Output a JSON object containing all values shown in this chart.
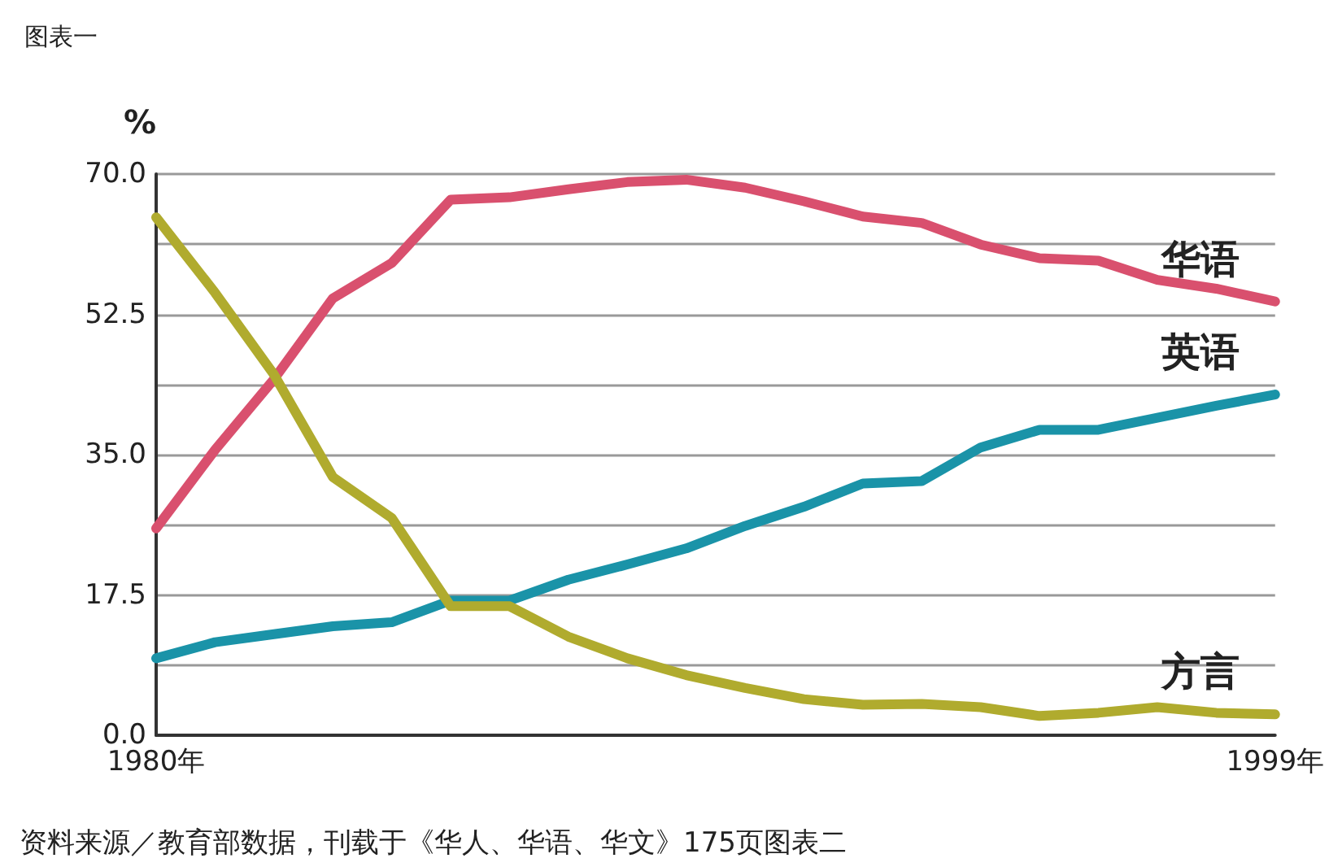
{
  "chart_data": {
    "type": "line",
    "title": "图表一",
    "ylabel": "%",
    "categories": [
      "1980年",
      null,
      null,
      null,
      null,
      null,
      null,
      null,
      null,
      null,
      null,
      null,
      null,
      null,
      null,
      null,
      null,
      null,
      null,
      "1999年"
    ],
    "series": [
      {
        "name": "华语",
        "color": "#d9506e",
        "values": [
          25.8,
          35.6,
          44.4,
          54.5,
          58.9,
          66.8,
          67.1,
          68.1,
          69.0,
          69.3,
          68.3,
          66.6,
          64.7,
          63.9,
          61.2,
          59.5,
          59.2,
          56.8,
          55.7,
          54.1
        ]
      },
      {
        "name": "英语",
        "color": "#1a93a8",
        "values": [
          9.6,
          11.6,
          12.6,
          13.6,
          14.1,
          16.8,
          16.8,
          19.4,
          21.3,
          23.3,
          26.1,
          28.5,
          31.4,
          31.7,
          35.9,
          38.1,
          38.1,
          39.6,
          41.1,
          42.5
        ]
      },
      {
        "name": "方言",
        "color": "#b0ab2e",
        "values": [
          64.6,
          55.2,
          45.0,
          32.2,
          27.1,
          16.1,
          16.1,
          12.3,
          9.6,
          7.5,
          5.9,
          4.5,
          3.8,
          3.9,
          3.5,
          2.4,
          2.8,
          3.5,
          2.8,
          2.6
        ]
      }
    ],
    "ylim": [
      0,
      70
    ],
    "yticks": [
      {
        "value": 0,
        "label": "0.0"
      },
      {
        "value": 8.75,
        "label": null
      },
      {
        "value": 17.5,
        "label": "17.5"
      },
      {
        "value": 26.25,
        "label": null
      },
      {
        "value": 35,
        "label": "35.0"
      },
      {
        "value": 43.75,
        "label": null
      },
      {
        "value": 52.5,
        "label": "52.5"
      },
      {
        "value": 61.25,
        "label": null
      },
      {
        "value": 70,
        "label": "70.0"
      }
    ],
    "grid": "y",
    "legend": false,
    "marker": "none",
    "line_style": "solid",
    "annotations": [
      "资料来源／教育部数据，刊载于《华人、华语、华文》175页图表二"
    ]
  }
}
